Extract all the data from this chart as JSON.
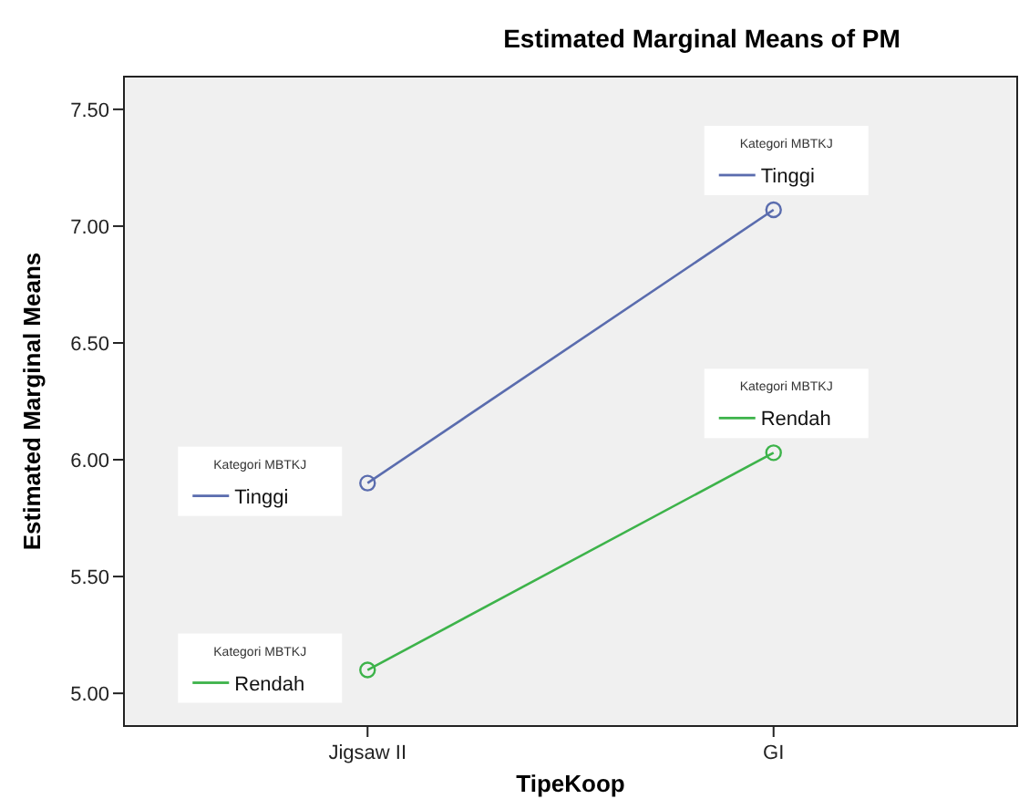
{
  "chart_data": {
    "type": "line",
    "title": "Estimated Marginal Means of PM",
    "xlabel": "TipeKoop",
    "ylabel": "Estimated Marginal Means",
    "legend_title": "Kategori MBTKJ",
    "categories": [
      "Jigsaw II",
      "GI"
    ],
    "series": [
      {
        "name": "Tinggi",
        "color": "#5a6cae",
        "values": [
          5.9,
          7.07
        ]
      },
      {
        "name": "Rendah",
        "color": "#3db34a",
        "values": [
          5.1,
          6.03
        ]
      }
    ],
    "ylim": [
      4.86,
      7.64
    ],
    "yticks": [
      {
        "value": 5,
        "label": "5.00"
      },
      {
        "value": 5.5,
        "label": "5.50"
      },
      {
        "value": 6,
        "label": "6.00"
      },
      {
        "value": 6.5,
        "label": "6.50"
      },
      {
        "value": 7,
        "label": "7.00"
      },
      {
        "value": 7.5,
        "label": "7.50"
      }
    ],
    "marker": "circle",
    "grid": false,
    "legend": "top right"
  }
}
